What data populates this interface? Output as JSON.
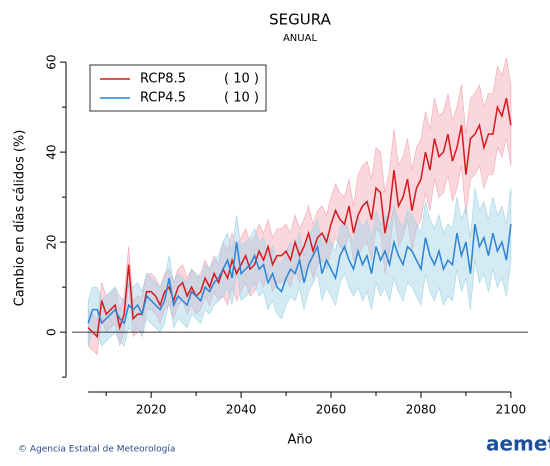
{
  "chart_data": {
    "type": "line",
    "title": "SEGURA",
    "subtitle": "ANUAL",
    "xlabel": "Año",
    "ylabel": "Cambio en días cálidos (%)",
    "xlim": [
      2002.4,
      2103.8
    ],
    "xticks": [
      2020,
      2040,
      2060,
      2080,
      2100
    ],
    "xminor": [
      2010,
      2030,
      2050,
      2070,
      2090
    ],
    "ylim": [
      -13.3,
      63.8
    ],
    "yticks": [
      0,
      20,
      40,
      60
    ],
    "yminor": [
      -10,
      10,
      30,
      50
    ],
    "hline": 0,
    "legend": "top-left",
    "x": [
      2006,
      2007,
      2008,
      2009,
      2010,
      2011,
      2012,
      2013,
      2014,
      2015,
      2016,
      2017,
      2018,
      2019,
      2020,
      2021,
      2022,
      2023,
      2024,
      2025,
      2026,
      2027,
      2028,
      2029,
      2030,
      2031,
      2032,
      2033,
      2034,
      2035,
      2036,
      2037,
      2038,
      2039,
      2040,
      2041,
      2042,
      2043,
      2044,
      2045,
      2046,
      2047,
      2048,
      2049,
      2050,
      2051,
      2052,
      2053,
      2054,
      2055,
      2056,
      2057,
      2058,
      2059,
      2060,
      2061,
      2062,
      2063,
      2064,
      2065,
      2066,
      2067,
      2068,
      2069,
      2070,
      2071,
      2072,
      2073,
      2074,
      2075,
      2076,
      2077,
      2078,
      2079,
      2080,
      2081,
      2082,
      2083,
      2084,
      2085,
      2086,
      2087,
      2088,
      2089,
      2090,
      2091,
      2092,
      2093,
      2094,
      2095,
      2096,
      2097,
      2098,
      2099,
      2100
    ],
    "series": [
      {
        "name": "RCP8.5",
        "count_label": "( 10 )",
        "color": "#d7191c",
        "band_color": "#f4a6b4",
        "values": [
          1,
          0,
          -1,
          7,
          4,
          5,
          6,
          1,
          4,
          15,
          3,
          4,
          4,
          9,
          9,
          8,
          6,
          9,
          10,
          7,
          10,
          11,
          8,
          10,
          8,
          9,
          12,
          10,
          13,
          11,
          14,
          12,
          16,
          13,
          15,
          17,
          14,
          15,
          18,
          16,
          19,
          15,
          17,
          17,
          18,
          16,
          20,
          17,
          19,
          22,
          18,
          21,
          22,
          20,
          24,
          27,
          25,
          24,
          28,
          22,
          26,
          28,
          29,
          25,
          32,
          31,
          22,
          27,
          36,
          28,
          30,
          34,
          27,
          32,
          34,
          40,
          36,
          43,
          39,
          40,
          44,
          38,
          41,
          46,
          35,
          43,
          44,
          46,
          41,
          44,
          44,
          50,
          48,
          52,
          46
        ],
        "lower": [
          -3,
          -4,
          -5,
          3,
          0,
          1,
          2,
          -3,
          0,
          11,
          -1,
          0,
          0,
          5,
          5,
          4,
          2,
          5,
          6,
          3,
          6,
          7,
          4,
          6,
          4,
          5,
          8,
          6,
          9,
          7,
          8,
          6,
          10,
          7,
          9,
          11,
          8,
          9,
          12,
          10,
          13,
          9,
          11,
          11,
          12,
          10,
          14,
          11,
          13,
          16,
          12,
          15,
          16,
          14,
          18,
          21,
          19,
          18,
          22,
          16,
          17,
          19,
          20,
          16,
          23,
          22,
          13,
          18,
          27,
          19,
          21,
          25,
          18,
          23,
          25,
          31,
          27,
          34,
          30,
          31,
          35,
          29,
          32,
          37,
          26,
          34,
          35,
          37,
          32,
          35,
          35,
          41,
          39,
          43,
          37
        ],
        "upper": [
          5,
          4,
          3,
          11,
          8,
          9,
          10,
          5,
          8,
          19,
          7,
          8,
          8,
          13,
          13,
          12,
          10,
          13,
          14,
          11,
          14,
          15,
          12,
          14,
          12,
          13,
          16,
          14,
          17,
          15,
          20,
          18,
          22,
          19,
          21,
          23,
          20,
          21,
          24,
          22,
          25,
          21,
          23,
          23,
          24,
          22,
          26,
          23,
          25,
          28,
          24,
          27,
          28,
          26,
          30,
          33,
          31,
          30,
          34,
          28,
          35,
          37,
          38,
          34,
          41,
          40,
          31,
          36,
          45,
          37,
          39,
          43,
          36,
          41,
          43,
          49,
          45,
          52,
          48,
          49,
          53,
          47,
          50,
          55,
          44,
          52,
          53,
          55,
          50,
          53,
          53,
          59,
          57,
          61,
          55
        ]
      },
      {
        "name": "RCP4.5",
        "count_label": "( 10 )",
        "color": "#2b83d6",
        "band_color": "#9fd3e6",
        "values": [
          2,
          5,
          5,
          2,
          3,
          4,
          5,
          3,
          2,
          6,
          5,
          6,
          4,
          8,
          7,
          6,
          5,
          7,
          12,
          6,
          8,
          7,
          6,
          9,
          8,
          7,
          10,
          9,
          11,
          12,
          14,
          16,
          12,
          20,
          13,
          14,
          15,
          17,
          14,
          15,
          11,
          13,
          10,
          9,
          12,
          14,
          13,
          16,
          11,
          15,
          17,
          19,
          13,
          16,
          14,
          12,
          17,
          19,
          16,
          14,
          18,
          15,
          17,
          13,
          19,
          16,
          18,
          15,
          20,
          17,
          15,
          19,
          18,
          16,
          14,
          21,
          17,
          15,
          18,
          14,
          16,
          15,
          22,
          17,
          20,
          13,
          24,
          19,
          21,
          17,
          22,
          18,
          20,
          16,
          24
        ],
        "lower": [
          -3,
          0,
          0,
          -3,
          -2,
          -1,
          0,
          -2,
          -3,
          1,
          0,
          1,
          -1,
          3,
          2,
          1,
          0,
          2,
          7,
          1,
          3,
          2,
          1,
          4,
          3,
          2,
          5,
          4,
          6,
          7,
          8,
          10,
          6,
          14,
          7,
          8,
          9,
          11,
          8,
          9,
          5,
          7,
          4,
          3,
          6,
          8,
          7,
          10,
          5,
          9,
          11,
          13,
          7,
          10,
          8,
          6,
          11,
          13,
          10,
          8,
          10,
          7,
          9,
          5,
          11,
          8,
          10,
          7,
          12,
          9,
          7,
          11,
          10,
          8,
          6,
          13,
          9,
          7,
          10,
          6,
          8,
          7,
          14,
          9,
          12,
          5,
          16,
          11,
          13,
          9,
          14,
          10,
          12,
          8,
          16
        ],
        "upper": [
          7,
          10,
          10,
          7,
          8,
          9,
          10,
          8,
          7,
          11,
          10,
          11,
          9,
          13,
          12,
          11,
          10,
          12,
          17,
          11,
          13,
          12,
          11,
          14,
          13,
          12,
          15,
          14,
          16,
          17,
          20,
          22,
          18,
          26,
          19,
          20,
          21,
          23,
          20,
          21,
          17,
          19,
          16,
          15,
          18,
          20,
          19,
          22,
          17,
          21,
          23,
          25,
          19,
          22,
          20,
          18,
          23,
          25,
          22,
          20,
          26,
          23,
          25,
          21,
          27,
          24,
          26,
          23,
          28,
          25,
          23,
          27,
          26,
          24,
          22,
          29,
          25,
          23,
          26,
          22,
          24,
          23,
          30,
          25,
          28,
          21,
          32,
          27,
          29,
          25,
          30,
          26,
          28,
          24,
          32
        ]
      }
    ]
  },
  "footer": {
    "credit": "© Agencia Estatal de Meteorología",
    "logo": "aemet"
  }
}
